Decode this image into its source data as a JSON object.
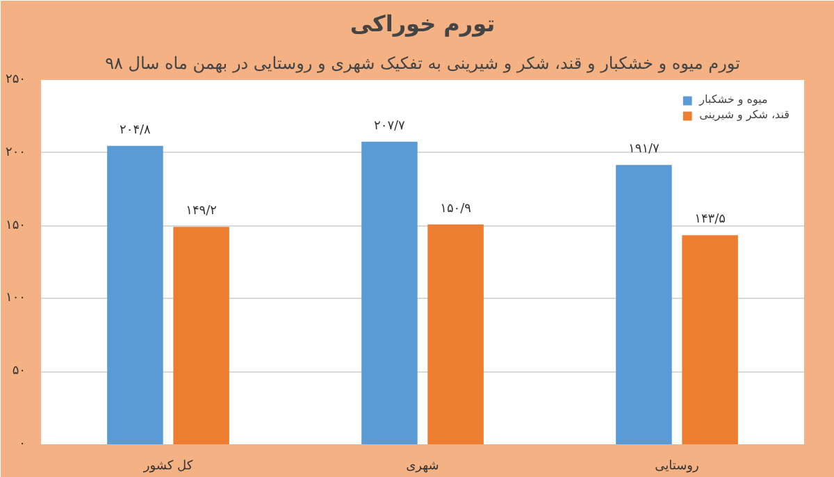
{
  "chart_data": {
    "type": "bar",
    "title": "تورم خوراکی",
    "subtitle": "تورم میوه و خشکبار و قند، شکر و شیرینی به تفکیک شهری و روستایی در بهمن ماه سال ۹۸",
    "categories": [
      "کل کشور",
      "شهری",
      "روستایی"
    ],
    "series": [
      {
        "name": "میوه و خشکبار",
        "color": "#5b9bd5",
        "values": [
          204.8,
          207.7,
          191.7
        ],
        "value_labels": [
          "۲۰۴/۸",
          "۲۰۷/۷",
          "۱۹۱/۷"
        ]
      },
      {
        "name": "قند، شکر و شیرینی",
        "color": "#ed7d31",
        "values": [
          149.2,
          150.9,
          143.5
        ],
        "value_labels": [
          "۱۴۹/۲",
          "۱۵۰/۹",
          "۱۴۳/۵"
        ]
      }
    ],
    "ylim": [
      0,
      250
    ],
    "yticks": [
      {
        "value": 0,
        "label": "۰"
      },
      {
        "value": 50,
        "label": "۵۰"
      },
      {
        "value": 100,
        "label": "۱۰۰"
      },
      {
        "value": 150,
        "label": "۱۵۰"
      },
      {
        "value": 200,
        "label": "۲۰۰"
      },
      {
        "value": 250,
        "label": "۲۵۰"
      }
    ],
    "grid": "y",
    "legend": "top right"
  }
}
